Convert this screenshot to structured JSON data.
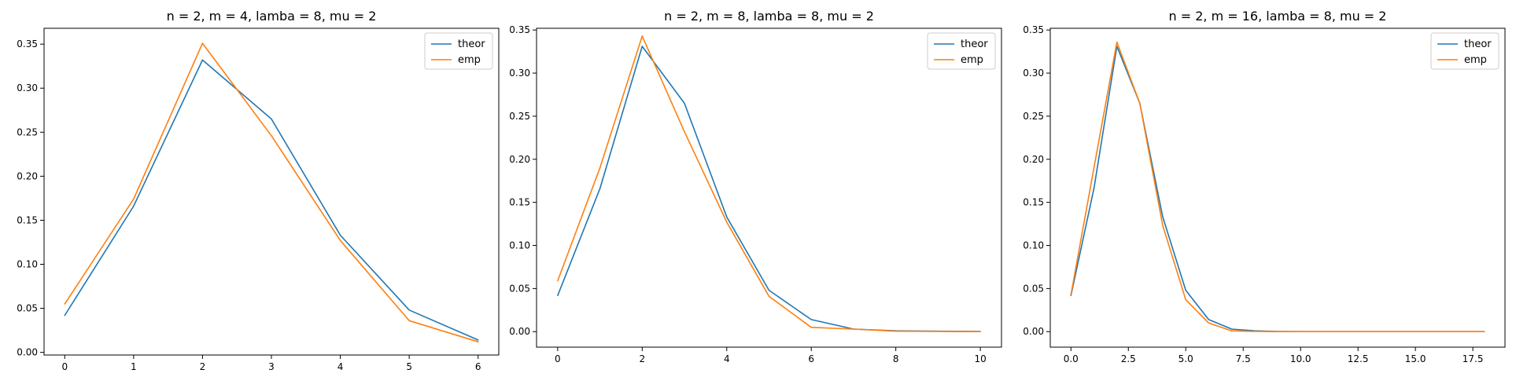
{
  "colors": {
    "theor": "#1f77b4",
    "emp": "#ff7f0e"
  },
  "chart_data": [
    {
      "type": "line",
      "title": "n = 2, m = 4, lamba = 8, mu = 2",
      "xlim": [
        -0.3,
        6.3
      ],
      "ylim": [
        -0.003,
        0.368
      ],
      "xticks": [
        0,
        1,
        2,
        3,
        4,
        5,
        6
      ],
      "xtick_labels": [
        "0",
        "1",
        "2",
        "3",
        "4",
        "5",
        "6"
      ],
      "yticks": [
        0.0,
        0.05,
        0.1,
        0.15,
        0.2,
        0.25,
        0.3,
        0.35
      ],
      "ytick_labels": [
        "0.00",
        "0.05",
        "0.10",
        "0.15",
        "0.20",
        "0.25",
        "0.30",
        "0.35"
      ],
      "legend": "top-right",
      "series": [
        {
          "name": "theor",
          "x": [
            0,
            1,
            2,
            3,
            4,
            5,
            6
          ],
          "y": [
            0.042,
            0.166,
            0.332,
            0.265,
            0.133,
            0.048,
            0.014
          ]
        },
        {
          "name": "emp",
          "x": [
            0,
            1,
            2,
            3,
            4,
            5,
            6
          ],
          "y": [
            0.055,
            0.174,
            0.351,
            0.246,
            0.127,
            0.036,
            0.012
          ]
        }
      ]
    },
    {
      "type": "line",
      "title": "n = 2, m = 8, lamba = 8, mu = 2",
      "xlim": [
        -0.5,
        10.5
      ],
      "ylim": [
        -0.018,
        0.352
      ],
      "xticks": [
        0,
        2,
        4,
        6,
        8,
        10
      ],
      "xtick_labels": [
        "0",
        "2",
        "4",
        "6",
        "8",
        "10"
      ],
      "yticks": [
        0.0,
        0.05,
        0.1,
        0.15,
        0.2,
        0.25,
        0.3,
        0.35
      ],
      "ytick_labels": [
        "0.00",
        "0.05",
        "0.10",
        "0.15",
        "0.20",
        "0.25",
        "0.30",
        "0.35"
      ],
      "legend": "top-right",
      "series": [
        {
          "name": "theor",
          "x": [
            0,
            1,
            2,
            3,
            4,
            5,
            6,
            7,
            8,
            9,
            10
          ],
          "y": [
            0.042,
            0.166,
            0.331,
            0.265,
            0.133,
            0.048,
            0.014,
            0.003,
            0.001,
            0.0005,
            0.0001
          ]
        },
        {
          "name": "emp",
          "x": [
            0,
            1,
            2,
            3,
            4,
            5,
            6,
            7,
            8,
            9,
            10
          ],
          "y": [
            0.059,
            0.19,
            0.343,
            0.232,
            0.127,
            0.041,
            0.005,
            0.003,
            0.0005,
            0.0002,
            0.0
          ]
        }
      ]
    },
    {
      "type": "line",
      "title": "n = 2, m = 16, lamba = 8, mu = 2",
      "xlim": [
        -0.9,
        18.9
      ],
      "ylim": [
        -0.018,
        0.352
      ],
      "xticks": [
        0,
        2.5,
        5,
        7.5,
        10,
        12.5,
        15,
        17.5
      ],
      "xtick_labels": [
        "0.0",
        "2.5",
        "5.0",
        "7.5",
        "10.0",
        "12.5",
        "15.0",
        "17.5"
      ],
      "yticks": [
        0.0,
        0.05,
        0.1,
        0.15,
        0.2,
        0.25,
        0.3,
        0.35
      ],
      "ytick_labels": [
        "0.00",
        "0.05",
        "0.10",
        "0.15",
        "0.20",
        "0.25",
        "0.30",
        "0.35"
      ],
      "legend": "top-right",
      "series": [
        {
          "name": "theor",
          "x": [
            0,
            1,
            2,
            3,
            4,
            5,
            6,
            7,
            8,
            9,
            10,
            11,
            12,
            13,
            14,
            15,
            16,
            17,
            18
          ],
          "y": [
            0.042,
            0.166,
            0.331,
            0.265,
            0.133,
            0.048,
            0.014,
            0.003,
            0.001,
            0.0002,
            0.0,
            0.0,
            0.0,
            0.0,
            0.0,
            0.0,
            0.0,
            0.0,
            0.0
          ]
        },
        {
          "name": "emp",
          "x": [
            0,
            1,
            2,
            3,
            4,
            5,
            6,
            7,
            8,
            9,
            10,
            11,
            12,
            13,
            14,
            15,
            16,
            17,
            18
          ],
          "y": [
            0.043,
            0.19,
            0.336,
            0.265,
            0.123,
            0.037,
            0.01,
            0.001,
            0.0003,
            0.0,
            0.0,
            0.0,
            0.0,
            0.0,
            0.0,
            0.0,
            0.0,
            0.0,
            0.0
          ]
        }
      ]
    }
  ]
}
